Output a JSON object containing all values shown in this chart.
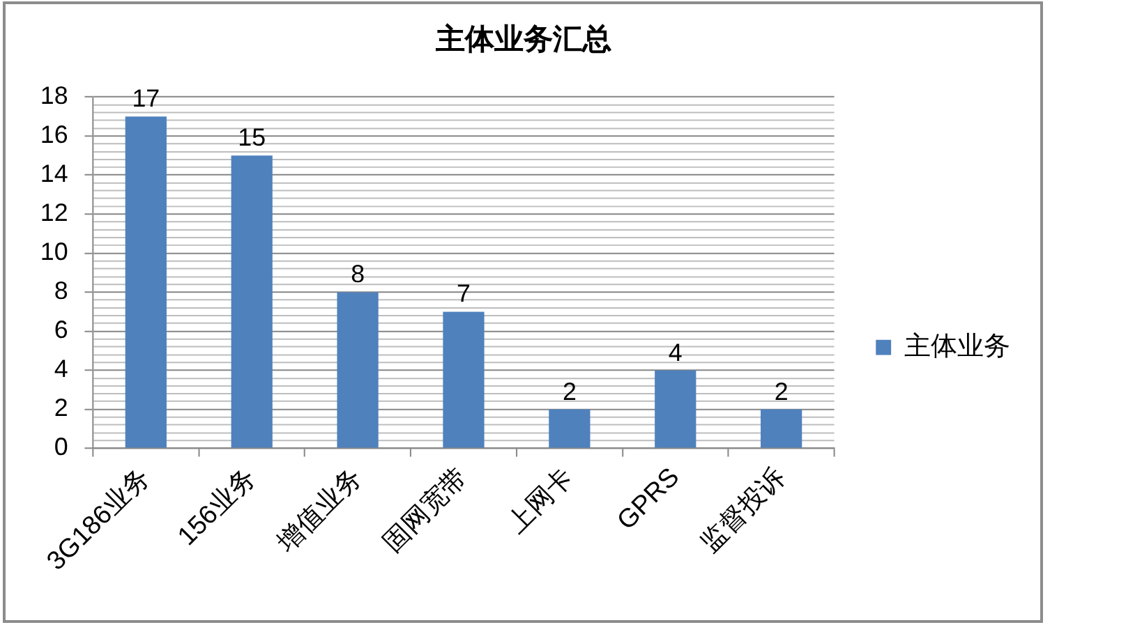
{
  "chart_data": {
    "type": "bar",
    "title": "主体业务汇总",
    "categories": [
      "3G186业务",
      "156业务",
      "增值业务",
      "固网宽带",
      "上网卡",
      "GPRS",
      "监督投诉"
    ],
    "series": [
      {
        "name": "主体业务",
        "color": "#4f81bd",
        "values": [
          17,
          15,
          8,
          7,
          2,
          4,
          2
        ]
      }
    ],
    "ylim": [
      0,
      18
    ],
    "yticks": [
      0,
      {
        "value": 0.4,
        "label": null
      },
      {
        "value": 0.8,
        "label": null
      },
      {
        "value": 1.2,
        "label": null
      },
      {
        "value": 1.6,
        "label": null
      },
      2,
      {
        "value": 2.4,
        "label": null
      },
      {
        "value": 2.8,
        "label": null
      },
      {
        "value": 3.2,
        "label": null
      },
      {
        "value": 3.6,
        "label": null
      },
      4,
      {
        "value": 4.4,
        "label": null
      },
      {
        "value": 4.8,
        "label": null
      },
      {
        "value": 5.2,
        "label": null
      },
      {
        "value": 5.6,
        "label": null
      },
      6,
      {
        "value": 6.4,
        "label": null
      },
      {
        "value": 6.8,
        "label": null
      },
      {
        "value": 7.2,
        "label": null
      },
      {
        "value": 7.6,
        "label": null
      },
      8,
      {
        "value": 8.4,
        "label": null
      },
      {
        "value": 8.8,
        "label": null
      },
      {
        "value": 9.2,
        "label": null
      },
      {
        "value": 9.6,
        "label": null
      },
      10,
      {
        "value": 10.4,
        "label": null
      },
      {
        "value": 10.8,
        "label": null
      },
      {
        "value": 11.2,
        "label": null
      },
      {
        "value": 11.6,
        "label": null
      },
      12,
      {
        "value": 12.4,
        "label": null
      },
      {
        "value": 12.8,
        "label": null
      },
      {
        "value": 13.2,
        "label": null
      },
      {
        "value": 13.6,
        "label": null
      },
      14,
      {
        "value": 14.4,
        "label": null
      },
      {
        "value": 14.8,
        "label": null
      },
      {
        "value": 15.2,
        "label": null
      },
      {
        "value": 15.6,
        "label": null
      },
      16,
      {
        "value": 16.4,
        "label": null
      },
      {
        "value": 16.8,
        "label": null
      },
      {
        "value": 17.2,
        "label": null
      },
      {
        "value": 17.6,
        "label": null
      },
      18
    ],
    "grid": "y",
    "legend": "right",
    "data_labels": true
  }
}
